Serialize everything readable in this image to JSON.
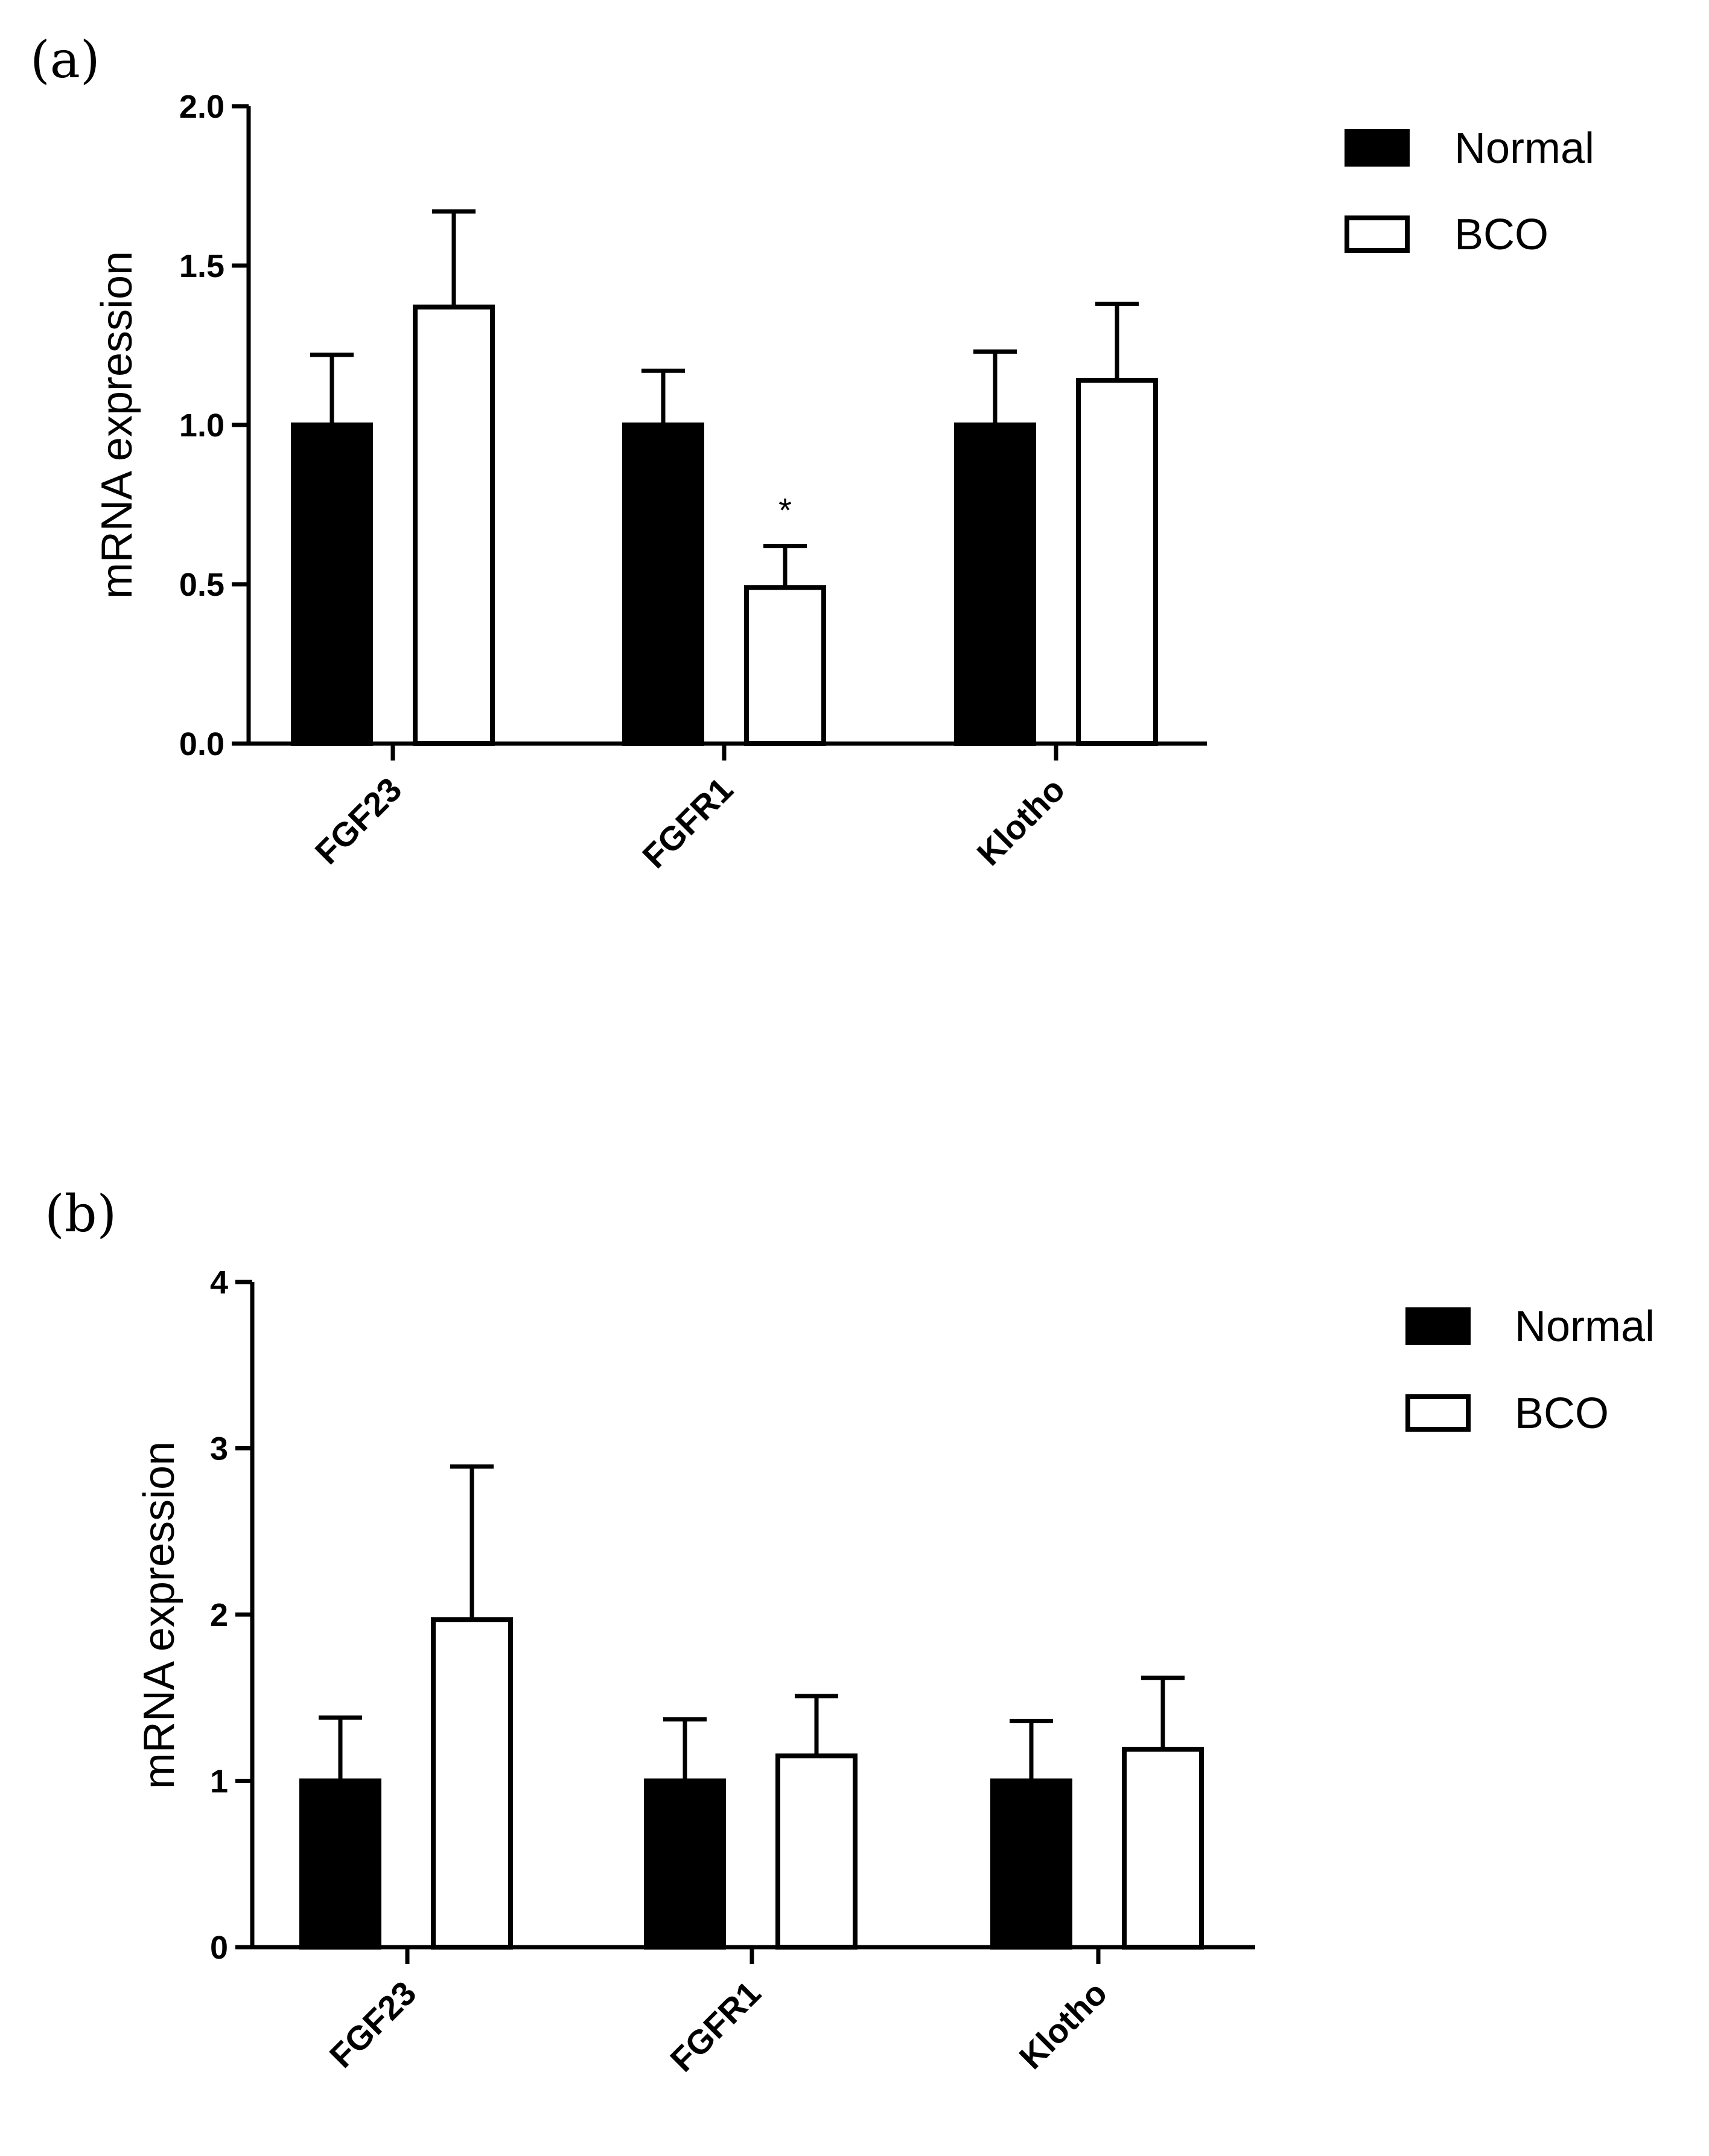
{
  "chart_data": [
    {
      "panel": "(a)",
      "type": "bar",
      "title": "",
      "xlabel": "",
      "ylabel": "mRNA expression",
      "categories": [
        "FGF23",
        "FGFR1",
        "Klotho"
      ],
      "series": [
        {
          "name": "Normal",
          "fill": "#000000",
          "values": [
            1.0,
            1.0,
            1.0
          ],
          "errors": [
            0.22,
            0.17,
            0.23
          ]
        },
        {
          "name": "BCO",
          "fill": "#ffffff",
          "values": [
            1.37,
            0.49,
            1.14
          ],
          "errors": [
            0.3,
            0.13,
            0.24
          ]
        }
      ],
      "ylim": [
        0,
        2.0
      ],
      "yticks": [
        0.0,
        0.5,
        1.0,
        1.5,
        2.0
      ],
      "ytick_labels": [
        "0.0",
        "0.5",
        "1.0",
        "1.5",
        "2.0"
      ],
      "annotations": [
        {
          "category": "FGFR1",
          "series": "BCO",
          "text": "*"
        }
      ],
      "legend": "top-right",
      "grid": false
    },
    {
      "panel": "(b)",
      "type": "bar",
      "title": "",
      "xlabel": "",
      "ylabel": "mRNA expression",
      "categories": [
        "FGF23",
        "FGFR1",
        "Klotho"
      ],
      "series": [
        {
          "name": "Normal",
          "fill": "#000000",
          "values": [
            1.0,
            1.0,
            1.0
          ],
          "errors": [
            0.38,
            0.37,
            0.36
          ]
        },
        {
          "name": "BCO",
          "fill": "#ffffff",
          "values": [
            1.97,
            1.15,
            1.19
          ],
          "errors": [
            0.92,
            0.36,
            0.43
          ]
        }
      ],
      "ylim": [
        0,
        4
      ],
      "yticks": [
        0,
        1,
        2,
        3,
        4
      ],
      "ytick_labels": [
        "0",
        "1",
        "2",
        "3",
        "4"
      ],
      "annotations": [],
      "legend": "top-right",
      "grid": false
    }
  ]
}
